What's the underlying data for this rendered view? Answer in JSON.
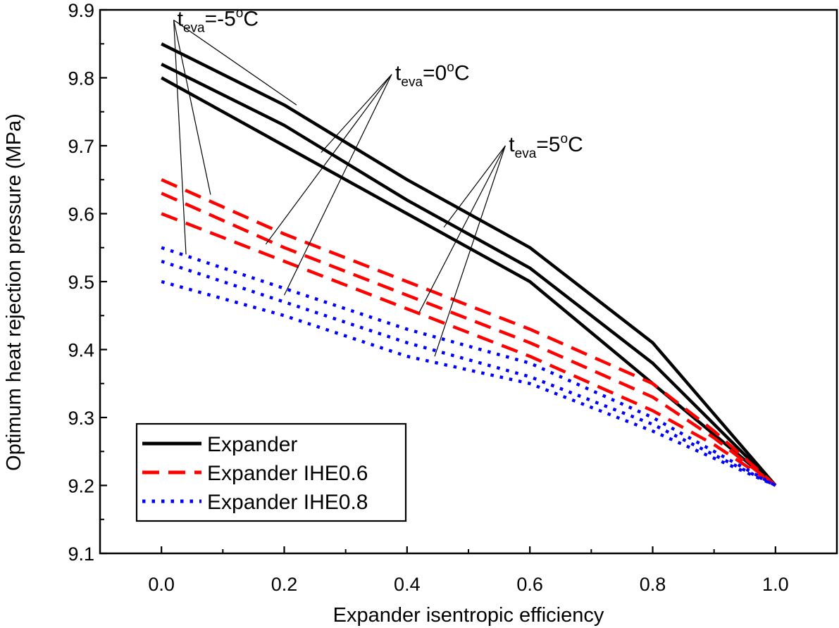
{
  "chart_data": {
    "type": "line",
    "xlabel": "Expander isentropic efficiency",
    "ylabel": "Optimum heat rejection pressure (MPa)",
    "xlim": [
      -0.1,
      1.1
    ],
    "ylim": [
      9.1,
      9.9
    ],
    "x_ticks": [
      "0.0",
      "0.2",
      "0.4",
      "0.6",
      "0.8",
      "1.0"
    ],
    "y_ticks": [
      "9.1",
      "9.2",
      "9.3",
      "9.4",
      "9.5",
      "9.6",
      "9.7",
      "9.8",
      "9.9"
    ],
    "x_tick_values": [
      0.0,
      0.2,
      0.4,
      0.6,
      0.8,
      1.0
    ],
    "y_tick_values": [
      9.1,
      9.2,
      9.3,
      9.4,
      9.5,
      9.6,
      9.7,
      9.8,
      9.9
    ],
    "colors": {
      "expander": "#000000",
      "ihe06": "#ff0000",
      "ihe08": "#0000ff"
    },
    "series": [
      {
        "name": "Expander (teva=-5°C)",
        "group": "expander",
        "x": [
          0.0,
          0.2,
          0.4,
          0.6,
          0.8,
          1.0
        ],
        "y": [
          9.85,
          9.76,
          9.65,
          9.55,
          9.41,
          9.2
        ]
      },
      {
        "name": "Expander (teva=0°C)",
        "group": "expander",
        "x": [
          0.0,
          0.2,
          0.4,
          0.6,
          0.8,
          1.0
        ],
        "y": [
          9.82,
          9.73,
          9.62,
          9.52,
          9.38,
          9.2
        ]
      },
      {
        "name": "Expander (teva=5°C)",
        "group": "expander",
        "x": [
          0.0,
          0.2,
          0.4,
          0.6,
          0.8,
          1.0
        ],
        "y": [
          9.8,
          9.7,
          9.6,
          9.5,
          9.35,
          9.2
        ]
      },
      {
        "name": "Expander IHE0.6 (teva=-5°C)",
        "group": "ihe06",
        "x": [
          0.0,
          0.2,
          0.4,
          0.6,
          0.8,
          0.9,
          1.0
        ],
        "y": [
          9.65,
          9.57,
          9.5,
          9.43,
          9.35,
          9.28,
          9.2
        ]
      },
      {
        "name": "Expander IHE0.6 (teva=0°C)",
        "group": "ihe06",
        "x": [
          0.0,
          0.2,
          0.4,
          0.6,
          0.8,
          0.9,
          1.0
        ],
        "y": [
          9.63,
          9.55,
          9.48,
          9.41,
          9.33,
          9.27,
          9.2
        ]
      },
      {
        "name": "Expander IHE0.6 (teva=5°C)",
        "group": "ihe06",
        "x": [
          0.0,
          0.2,
          0.4,
          0.6,
          0.8,
          0.9,
          1.0
        ],
        "y": [
          9.6,
          9.53,
          9.46,
          9.39,
          9.31,
          9.26,
          9.2
        ]
      },
      {
        "name": "Expander IHE0.8 (teva=-5°C)",
        "group": "ihe08",
        "x": [
          0.0,
          0.2,
          0.4,
          0.6,
          0.8,
          0.9,
          1.0
        ],
        "y": [
          9.55,
          9.49,
          9.43,
          9.38,
          9.3,
          9.25,
          9.2
        ]
      },
      {
        "name": "Expander IHE0.8 (teva=0°C)",
        "group": "ihe08",
        "x": [
          0.0,
          0.2,
          0.4,
          0.6,
          0.8,
          0.9,
          1.0
        ],
        "y": [
          9.53,
          9.47,
          9.41,
          9.36,
          9.29,
          9.245,
          9.2
        ]
      },
      {
        "name": "Expander IHE0.8 (teva=5°C)",
        "group": "ihe08",
        "x": [
          0.0,
          0.2,
          0.4,
          0.6,
          0.8,
          0.9,
          1.0
        ],
        "y": [
          9.5,
          9.45,
          9.39,
          9.35,
          9.28,
          9.24,
          9.2
        ]
      }
    ],
    "legend": {
      "position": "bottom-left",
      "entries": [
        {
          "label": "Expander",
          "group": "expander",
          "style": "solid"
        },
        {
          "label": "Expander IHE0.6",
          "group": "ihe06",
          "style": "dash"
        },
        {
          "label": "Expander IHE0.8",
          "group": "ihe08",
          "style": "dot"
        }
      ]
    },
    "annotations": [
      {
        "id": "teva-neg5",
        "base": "t",
        "sub": "eva",
        "eq": "=-5",
        "sup": "o",
        "unit": "C",
        "anchor": [
          0.02,
          9.885
        ],
        "targets": [
          [
            0.22,
            9.76
          ],
          [
            0.08,
            9.628
          ],
          [
            0.04,
            9.54
          ]
        ]
      },
      {
        "id": "teva-0",
        "base": "t",
        "sub": "eva",
        "eq": "=0",
        "sup": "o",
        "unit": "C",
        "anchor": [
          0.375,
          9.805
        ],
        "targets": [
          [
            0.26,
            9.69
          ],
          [
            0.17,
            9.555
          ],
          [
            0.2,
            9.48
          ]
        ]
      },
      {
        "id": "teva-5",
        "base": "t",
        "sub": "eva",
        "eq": "=5",
        "sup": "o",
        "unit": "C",
        "anchor": [
          0.56,
          9.7
        ],
        "targets": [
          [
            0.46,
            9.58
          ],
          [
            0.42,
            9.455
          ],
          [
            0.445,
            9.39
          ]
        ]
      }
    ]
  }
}
